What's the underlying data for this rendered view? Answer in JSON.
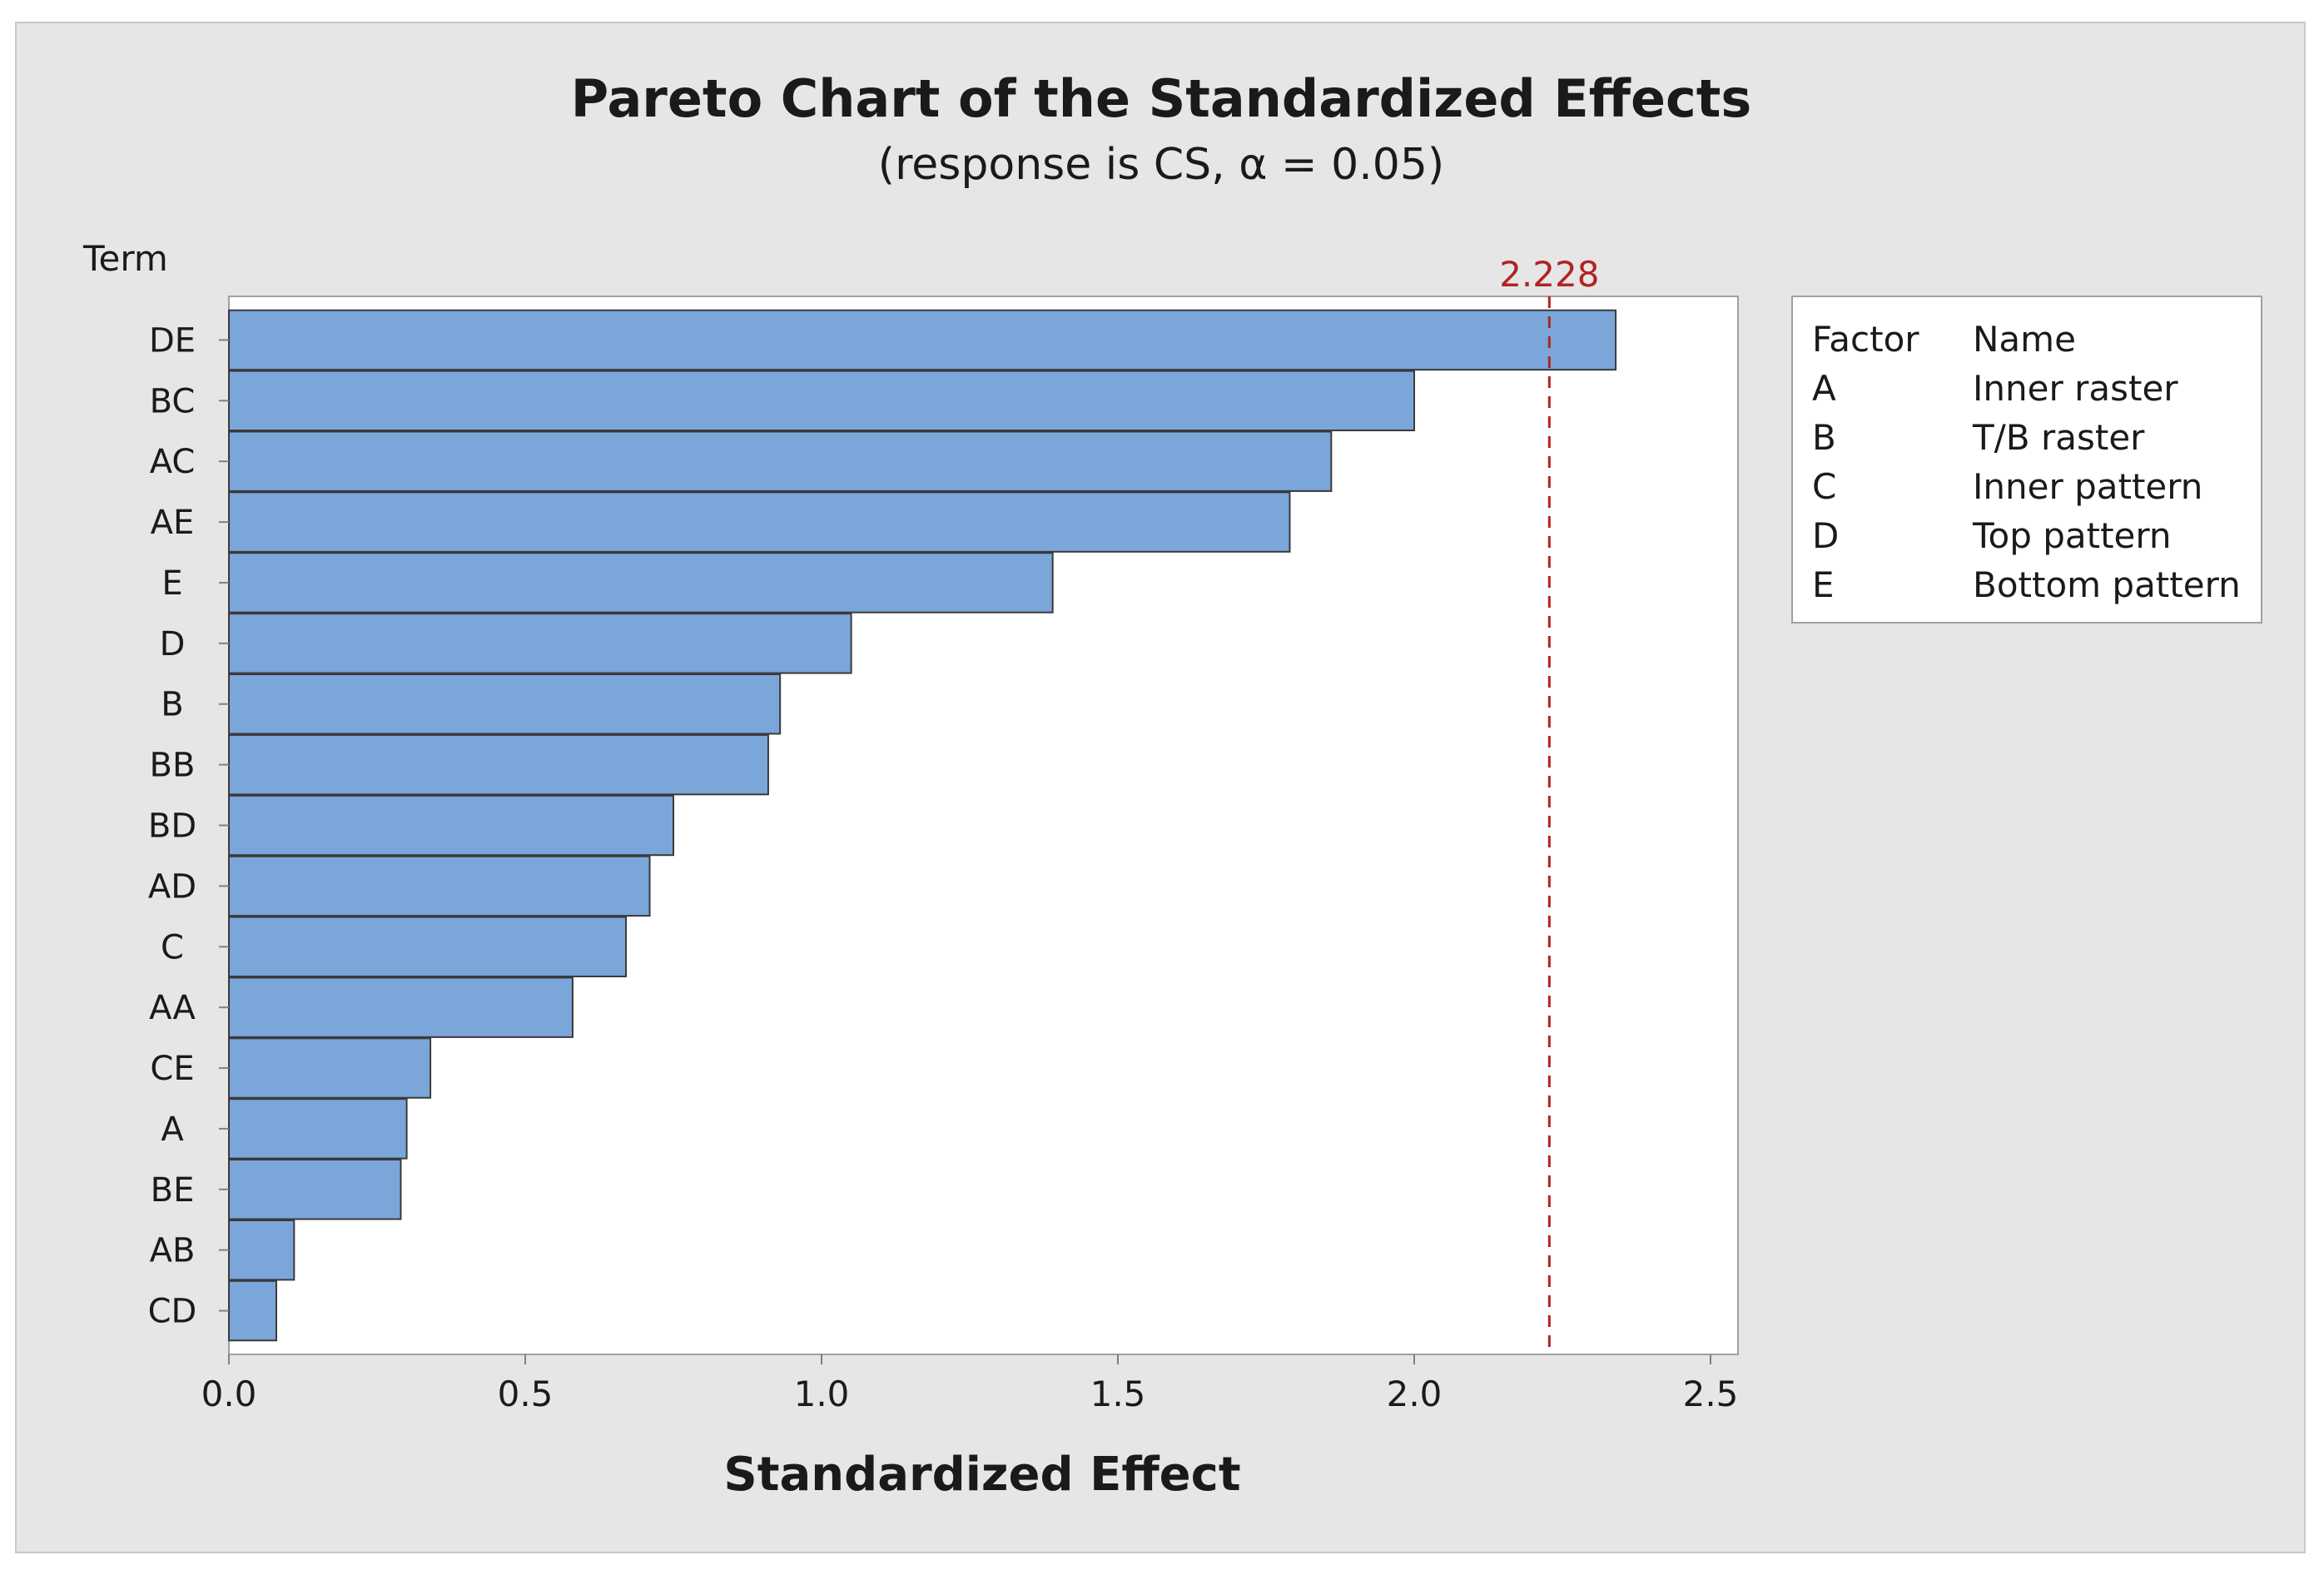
{
  "chart_data": {
    "type": "bar",
    "orientation": "horizontal",
    "title": "Pareto Chart of the Standardized Effects",
    "subtitle": "(response is CS, α = 0.05)",
    "ylabel": "Term",
    "xlabel": "Standardized Effect",
    "categories": [
      "DE",
      "BC",
      "AC",
      "AE",
      "E",
      "D",
      "B",
      "BB",
      "BD",
      "AD",
      "C",
      "AA",
      "CE",
      "A",
      "BE",
      "AB",
      "CD"
    ],
    "values": [
      2.34,
      2.0,
      1.86,
      1.79,
      1.39,
      1.05,
      0.93,
      0.91,
      0.75,
      0.71,
      0.67,
      0.58,
      0.34,
      0.3,
      0.29,
      0.11,
      0.08
    ],
    "xlim": [
      0,
      2.55
    ],
    "xticks": [
      "0.0",
      "0.5",
      "1.0",
      "1.5",
      "2.0",
      "2.5"
    ],
    "xtick_values": [
      0,
      0.5,
      1.0,
      1.5,
      2.0,
      2.5
    ],
    "reference_line": {
      "value": 2.228,
      "label": "2.228",
      "color": "#b22222",
      "style": "dashed"
    },
    "bar_color": "#7ba6da",
    "bar_edge_color": "#3a3a3a",
    "grid": false,
    "legend": {
      "placement": "right",
      "header": [
        "Factor",
        "Name"
      ],
      "rows": [
        [
          "A",
          "Inner raster"
        ],
        [
          "B",
          "T/B raster"
        ],
        [
          "C",
          "Inner pattern"
        ],
        [
          "D",
          "Top pattern"
        ],
        [
          "E",
          "Bottom pattern"
        ]
      ]
    }
  }
}
